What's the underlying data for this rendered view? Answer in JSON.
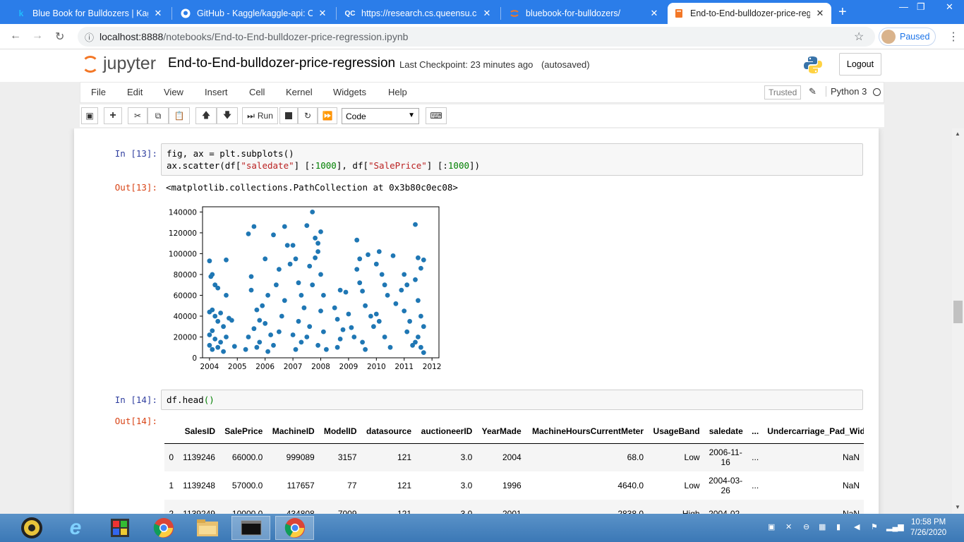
{
  "browser": {
    "tabs": [
      {
        "icon": "k",
        "title": "Blue Book for Bulldozers | Kaggl",
        "close": "✕"
      },
      {
        "icon": "gh",
        "title": "GitHub - Kaggle/kaggle-api: Offi",
        "close": "✕"
      },
      {
        "icon": "QC",
        "title": "https://research.cs.queensu.ca/h",
        "close": "✕"
      },
      {
        "icon": "jp",
        "title": "bluebook-for-bulldozers/",
        "close": "✕"
      },
      {
        "icon": "nb",
        "title": "End-to-End-bulldozer-price-reg",
        "close": "✕"
      }
    ],
    "new_tab": "+",
    "window_controls": [
      "—",
      "❐",
      "✕"
    ],
    "url_host": "localhost:8888",
    "url_path": "/notebooks/End-to-End-bulldozer-price-regression.ipynb",
    "profile_label": "Paused"
  },
  "jupyter": {
    "logo_text": "jupyter",
    "notebook_name": "End-to-End-bulldozer-price-regression",
    "checkpoint": "Last Checkpoint: 23 minutes ago",
    "autosave": "(autosaved)",
    "logout_label": "Logout",
    "menu": [
      "File",
      "Edit",
      "View",
      "Insert",
      "Cell",
      "Kernel",
      "Widgets",
      "Help"
    ],
    "trusted_label": "Trusted",
    "kernel_name": "Python 3",
    "toolbar": {
      "run_label": "Run",
      "cell_type": "Code"
    }
  },
  "cells": {
    "cell13": {
      "in_prompt": "In [13]:",
      "code_line1": "fig, ax = plt.subplots()",
      "code_line2_a": "ax.scatter(df[",
      "code_line2_s1": "\"saledate\"",
      "code_line2_b": "] [:",
      "code_line2_n1": "1000",
      "code_line2_c": "], df[",
      "code_line2_s2": "\"SalePrice\"",
      "code_line2_d": "] [:",
      "code_line2_n2": "1000",
      "code_line2_e": "])",
      "out_prompt": "Out[13]:",
      "out_text": "<matplotlib.collections.PathCollection at 0x3b80c0ec08>"
    },
    "cell14": {
      "in_prompt": "In [14]:",
      "code_a": "df.head",
      "code_b": "()",
      "out_prompt": "Out[14]:"
    }
  },
  "chart_data": {
    "type": "scatter",
    "title": "",
    "xlabel": "",
    "ylabel": "",
    "xlim": [
      2003.75,
      2012.25
    ],
    "ylim": [
      0,
      145000
    ],
    "x_ticks": [
      "2004",
      "2005",
      "2006",
      "2007",
      "2008",
      "2009",
      "2010",
      "2011",
      "2012"
    ],
    "y_ticks": [
      "0",
      "20000",
      "40000",
      "60000",
      "80000",
      "100000",
      "120000",
      "140000"
    ],
    "color": "#1f77b4",
    "grid": false,
    "points": [
      [
        2004.0,
        93000
      ],
      [
        2004.1,
        80000
      ],
      [
        2004.05,
        78000
      ],
      [
        2004.2,
        70000
      ],
      [
        2004.3,
        67000
      ],
      [
        2004.0,
        44000
      ],
      [
        2004.1,
        46000
      ],
      [
        2004.2,
        40000
      ],
      [
        2004.4,
        43000
      ],
      [
        2004.6,
        94000
      ],
      [
        2004.3,
        35000
      ],
      [
        2004.5,
        30000
      ],
      [
        2004.1,
        26000
      ],
      [
        2004.0,
        22000
      ],
      [
        2004.2,
        18000
      ],
      [
        2004.4,
        15000
      ],
      [
        2004.0,
        12000
      ],
      [
        2004.3,
        10000
      ],
      [
        2004.1,
        8000
      ],
      [
        2004.5,
        6000
      ],
      [
        2004.6,
        20000
      ],
      [
        2004.7,
        38000
      ],
      [
        2004.6,
        60000
      ],
      [
        2004.8,
        36000
      ],
      [
        2004.9,
        11000
      ],
      [
        2005.3,
        8000
      ],
      [
        2005.4,
        20000
      ],
      [
        2005.5,
        78000
      ],
      [
        2005.4,
        119000
      ],
      [
        2005.6,
        126000
      ],
      [
        2005.5,
        65000
      ],
      [
        2005.7,
        46000
      ],
      [
        2005.6,
        28000
      ],
      [
        2005.8,
        15000
      ],
      [
        2005.9,
        50000
      ],
      [
        2006.0,
        95000
      ],
      [
        2006.1,
        60000
      ],
      [
        2006.0,
        33000
      ],
      [
        2006.2,
        22000
      ],
      [
        2006.3,
        118000
      ],
      [
        2006.4,
        70000
      ],
      [
        2006.5,
        85000
      ],
      [
        2006.6,
        40000
      ],
      [
        2006.7,
        126000
      ],
      [
        2006.8,
        108000
      ],
      [
        2006.9,
        90000
      ],
      [
        2006.7,
        55000
      ],
      [
        2006.5,
        25000
      ],
      [
        2006.3,
        12000
      ],
      [
        2006.1,
        6000
      ],
      [
        2005.8,
        36000
      ],
      [
        2005.7,
        10000
      ],
      [
        2007.0,
        108000
      ],
      [
        2007.1,
        95000
      ],
      [
        2007.2,
        72000
      ],
      [
        2007.3,
        60000
      ],
      [
        2007.4,
        48000
      ],
      [
        2007.2,
        35000
      ],
      [
        2007.0,
        22000
      ],
      [
        2007.5,
        127000
      ],
      [
        2007.6,
        88000
      ],
      [
        2007.7,
        70000
      ],
      [
        2007.8,
        96000
      ],
      [
        2007.9,
        110000
      ],
      [
        2007.7,
        140000
      ],
      [
        2007.8,
        115000
      ],
      [
        2007.9,
        102000
      ],
      [
        2008.0,
        121000
      ],
      [
        2008.0,
        80000
      ],
      [
        2008.1,
        60000
      ],
      [
        2008.0,
        45000
      ],
      [
        2007.6,
        30000
      ],
      [
        2007.5,
        20000
      ],
      [
        2007.3,
        15000
      ],
      [
        2007.1,
        8000
      ],
      [
        2007.9,
        12000
      ],
      [
        2008.1,
        25000
      ],
      [
        2008.2,
        8000
      ],
      [
        2008.5,
        48000
      ],
      [
        2008.6,
        37000
      ],
      [
        2008.7,
        65000
      ],
      [
        2008.8,
        27000
      ],
      [
        2008.9,
        63000
      ],
      [
        2008.7,
        18000
      ],
      [
        2008.6,
        10000
      ],
      [
        2009.0,
        42000
      ],
      [
        2009.1,
        29000
      ],
      [
        2009.2,
        20000
      ],
      [
        2009.3,
        113000
      ],
      [
        2009.4,
        95000
      ],
      [
        2009.5,
        64000
      ],
      [
        2009.3,
        85000
      ],
      [
        2009.4,
        72000
      ],
      [
        2009.6,
        50000
      ],
      [
        2009.7,
        99000
      ],
      [
        2009.5,
        15000
      ],
      [
        2009.6,
        8000
      ],
      [
        2009.8,
        40000
      ],
      [
        2009.9,
        30000
      ],
      [
        2010.0,
        90000
      ],
      [
        2010.1,
        102000
      ],
      [
        2010.2,
        80000
      ],
      [
        2010.3,
        70000
      ],
      [
        2010.4,
        60000
      ],
      [
        2010.0,
        42000
      ],
      [
        2010.1,
        35000
      ],
      [
        2010.3,
        20000
      ],
      [
        2010.5,
        10000
      ],
      [
        2010.6,
        98000
      ],
      [
        2010.7,
        52000
      ],
      [
        2010.9,
        65000
      ],
      [
        2011.0,
        80000
      ],
      [
        2011.1,
        70000
      ],
      [
        2011.0,
        45000
      ],
      [
        2011.2,
        35000
      ],
      [
        2011.1,
        25000
      ],
      [
        2011.3,
        12000
      ],
      [
        2011.4,
        128000
      ],
      [
        2011.5,
        96000
      ],
      [
        2011.6,
        86000
      ],
      [
        2011.4,
        75000
      ],
      [
        2011.5,
        55000
      ],
      [
        2011.6,
        40000
      ],
      [
        2011.7,
        30000
      ],
      [
        2011.5,
        20000
      ],
      [
        2011.6,
        10000
      ],
      [
        2011.7,
        5000
      ],
      [
        2011.4,
        15000
      ],
      [
        2011.7,
        94000
      ]
    ]
  },
  "table": {
    "columns": [
      "",
      "SalesID",
      "SalePrice",
      "MachineID",
      "ModelID",
      "datasource",
      "auctioneerID",
      "YearMade",
      "MachineHoursCurrentMeter",
      "UsageBand",
      "saledate",
      "...",
      "Undercarriage_Pad_Widt"
    ],
    "rows": [
      [
        "0",
        "1139246",
        "66000.0",
        "999089",
        "3157",
        "121",
        "3.0",
        "2004",
        "68.0",
        "Low",
        "2006-11-16",
        "...",
        "NaN"
      ],
      [
        "1",
        "1139248",
        "57000.0",
        "117657",
        "77",
        "121",
        "3.0",
        "1996",
        "4640.0",
        "Low",
        "2004-03-26",
        "...",
        "NaN"
      ],
      [
        "2",
        "1139249",
        "10000.0",
        "434808",
        "7009",
        "121",
        "3.0",
        "2001",
        "2838.0",
        "High",
        "2004-02-",
        "",
        "NaN"
      ]
    ]
  },
  "taskbar": {
    "time": "10:58 PM",
    "date": "7/26/2020"
  }
}
